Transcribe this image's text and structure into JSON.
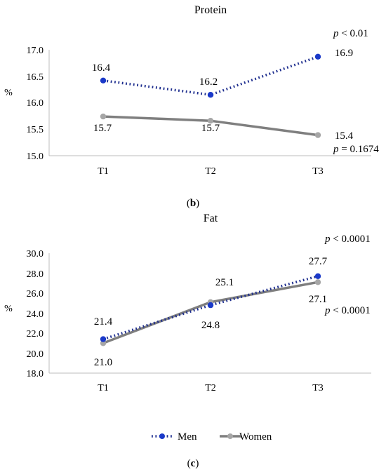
{
  "chart_data": [
    {
      "type": "line",
      "title": "Protein",
      "ylabel": "%",
      "categories": [
        "T1",
        "T2",
        "T3"
      ],
      "ylim": [
        15.0,
        17.0
      ],
      "yticks": [
        "15.0",
        "15.5",
        "16.0",
        "16.5",
        "17.0"
      ],
      "grid": false,
      "series": [
        {
          "name": "Men",
          "values": [
            16.42,
            16.15,
            16.87
          ],
          "labels": [
            "16.4",
            "16.2",
            "16.9"
          ],
          "color": "#1f2f8f",
          "style": "dotted"
        },
        {
          "name": "Women",
          "values": [
            15.74,
            15.66,
            15.39
          ],
          "labels": [
            "15.7",
            "15.7",
            "15.4"
          ],
          "color": "#7f7f7f",
          "style": "solid"
        }
      ],
      "annotations": [
        {
          "series": "Men",
          "p_prefix": "p",
          "p_rest": " < 0.01"
        },
        {
          "series": "Women",
          "p_prefix": "p",
          "p_rest": " = 0.1674"
        }
      ],
      "panel_label": {
        "open": "(",
        "letter": "b",
        "close": ")"
      }
    },
    {
      "type": "line",
      "title": "Fat",
      "ylabel": "%",
      "categories": [
        "T1",
        "T2",
        "T3"
      ],
      "ylim": [
        18.0,
        30.0
      ],
      "yticks": [
        "18.0",
        "20.0",
        "22.0",
        "24.0",
        "26.0",
        "28.0",
        "30.0"
      ],
      "grid": false,
      "series": [
        {
          "name": "Men",
          "values": [
            21.4,
            24.8,
            27.7
          ],
          "labels": [
            "21.4",
            "24.8",
            "27.7"
          ],
          "color": "#1f2f8f",
          "style": "dotted"
        },
        {
          "name": "Women",
          "values": [
            21.0,
            25.1,
            27.1
          ],
          "labels": [
            "21.0",
            "25.1",
            "27.1"
          ],
          "color": "#7f7f7f",
          "style": "solid"
        }
      ],
      "annotations": [
        {
          "series": "Men",
          "p_prefix": "p",
          "p_rest": " < 0.0001"
        },
        {
          "series": "Women",
          "p_prefix": "p",
          "p_rest": " < 0.0001"
        }
      ],
      "panel_label": {
        "open": "(",
        "letter": "c",
        "close": ")"
      }
    }
  ],
  "legend": {
    "items": [
      {
        "name": "Men",
        "color": "#1f2f8f",
        "style": "dotted"
      },
      {
        "name": "Women",
        "color": "#7f7f7f",
        "style": "solid"
      }
    ]
  }
}
